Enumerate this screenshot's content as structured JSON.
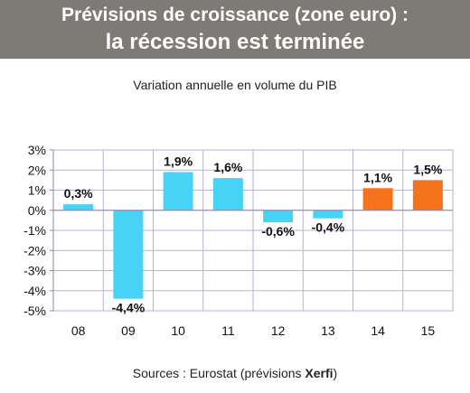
{
  "header": {
    "line1": "Prévisions de croissance (zone euro) :",
    "line2": "la récession est terminée"
  },
  "source": {
    "prefix": "Sources : Eurostat (prévisions ",
    "brand": "Xerfi",
    "suffix": ")"
  },
  "chart_data": {
    "type": "bar",
    "title": "",
    "subtitle": "Variation annuelle en volume du PIB",
    "xlabel": "",
    "ylabel": "",
    "categories": [
      "08",
      "09",
      "10",
      "11",
      "12",
      "13",
      "14",
      "15"
    ],
    "values": [
      0.3,
      -4.4,
      1.9,
      1.6,
      -0.6,
      -0.4,
      1.1,
      1.5
    ],
    "data_labels": [
      "0,3%",
      "-4,4%",
      "1,9%",
      "1,6%",
      "-0,6%",
      "-0,4%",
      "1,1%",
      "1,5%"
    ],
    "forecast": [
      false,
      false,
      false,
      false,
      false,
      false,
      true,
      true
    ],
    "yticks": [
      3,
      2,
      1,
      0,
      -1,
      -2,
      -3,
      -4,
      -5
    ],
    "ytick_labels": [
      "3%",
      "2%",
      "1%",
      "0%",
      "-1%",
      "-2%",
      "-3%",
      "-4%",
      "-5%"
    ],
    "ylim": [
      -5,
      3
    ],
    "grid": true,
    "legend": "none",
    "colors": {
      "actual": "#47d3f5",
      "forecast": "#f5731d",
      "grid": "#b9b2d4",
      "axis": "#8a86a8",
      "banner": "#7e7a75"
    }
  }
}
